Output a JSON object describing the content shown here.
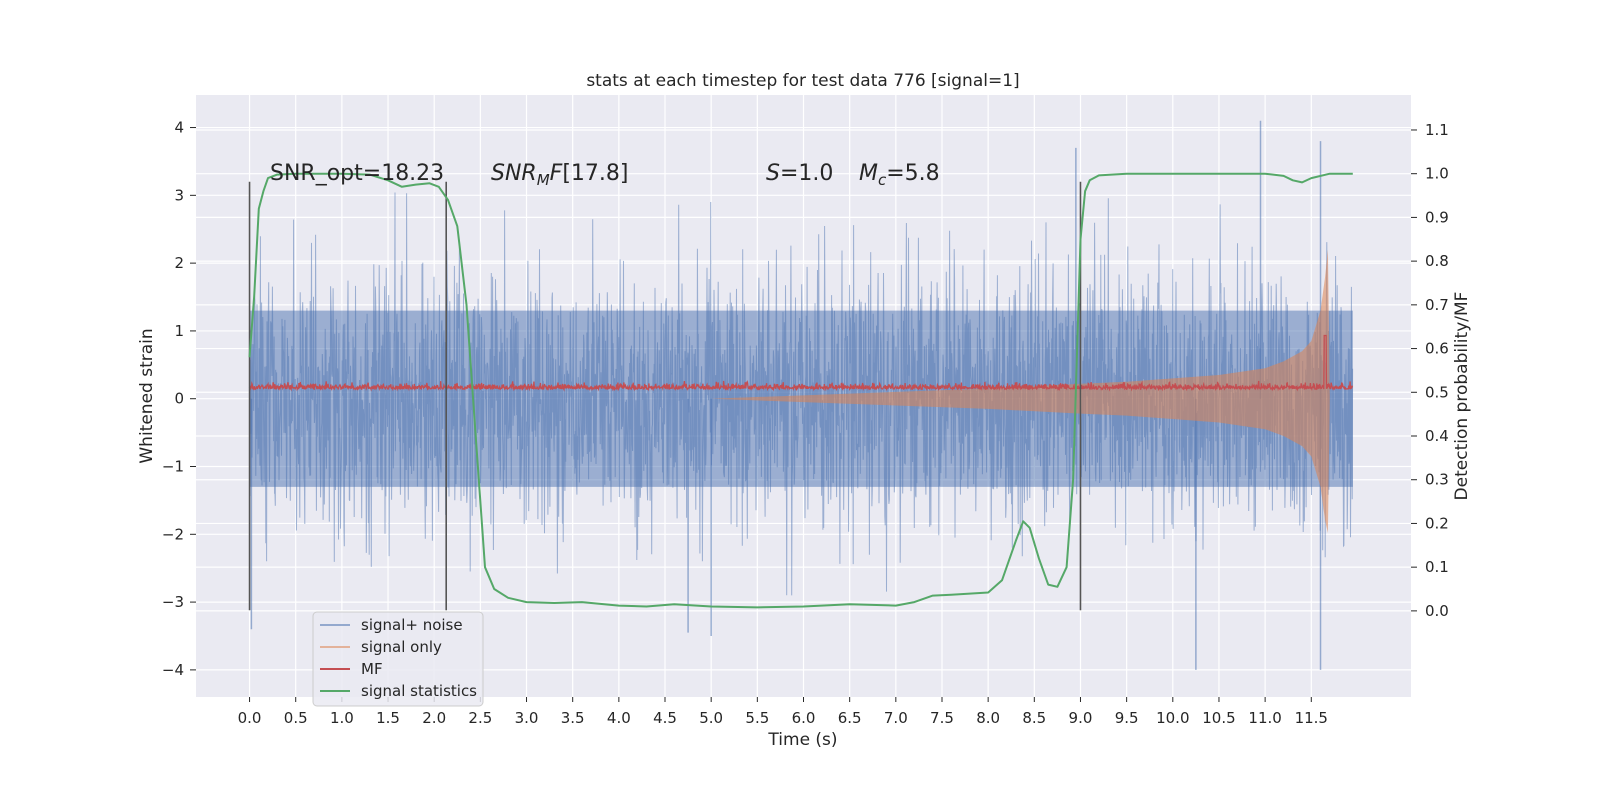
{
  "chart_data": {
    "type": "line",
    "title": "stats at each timestep for test data 776 [signal=1]",
    "xlabel": "Time (s)",
    "ylabel": "Whitened strain",
    "y2label": "Detection probability/MF",
    "xlim": [
      -0.58,
      12.58
    ],
    "ylim": [
      -4.4,
      4.48
    ],
    "y2lim": [
      -0.197,
      1.18
    ],
    "x_ticks": [
      "0.0",
      "0.5",
      "1.0",
      "1.5",
      "2.0",
      "2.5",
      "3.0",
      "3.5",
      "4.0",
      "4.5",
      "5.0",
      "5.5",
      "6.0",
      "6.5",
      "7.0",
      "7.5",
      "8.0",
      "8.5",
      "9.0",
      "9.5",
      "10.0",
      "10.5",
      "11.0",
      "11.5"
    ],
    "y_ticks": [
      "4",
      "3",
      "2",
      "1",
      "0",
      "−1",
      "−2",
      "−3",
      "−4"
    ],
    "y2_ticks": [
      "1.1",
      "1.0",
      "0.9",
      "0.8",
      "0.7",
      "0.6",
      "0.5",
      "0.4",
      "0.3",
      "0.2",
      "0.1",
      "0.0"
    ],
    "grid": true,
    "legend_position": "lower-left",
    "annotations": {
      "snr_opt": "SNR_opt=18.23",
      "snr_mf": "[17.8]",
      "s_val": "=1.0",
      "mc_val": "=5.8"
    },
    "vlines_x": [
      0.0,
      2.13,
      9.0
    ],
    "vline_range": [
      -3.12,
      3.2
    ],
    "series": [
      {
        "name": "signal+ noise",
        "color": "#4c72b0",
        "axis": "left",
        "x_range": [
          0.0,
          11.95
        ],
        "envelope": {
          "x": [
            0,
            1,
            2,
            3,
            4,
            5,
            6,
            7,
            8,
            9,
            10,
            11,
            11.95
          ],
          "upper": [
            3.0,
            3.1,
            3.0,
            3.0,
            3.1,
            2.9,
            3.0,
            3.0,
            3.0,
            3.2,
            3.1,
            3.3,
            2.6
          ],
          "lower": [
            -3.0,
            -2.9,
            -3.0,
            -3.1,
            -3.0,
            -3.1,
            -3.0,
            -3.0,
            -3.0,
            -3.1,
            -3.3,
            -3.6,
            -2.0
          ]
        },
        "peaks": [
          [
            0.02,
            -3.4
          ],
          [
            4.75,
            -3.45
          ],
          [
            5.0,
            -3.5
          ],
          [
            8.95,
            3.7
          ],
          [
            10.25,
            -4.0
          ],
          [
            10.95,
            4.1
          ],
          [
            11.6,
            3.8
          ],
          [
            11.6,
            -4.0
          ]
        ]
      },
      {
        "name": "signal only",
        "color": "#dd8452",
        "axis": "left",
        "x": [
          5.0,
          6.0,
          7.0,
          8.0,
          9.0,
          9.5,
          10.0,
          10.5,
          11.0,
          11.2,
          11.4,
          11.5,
          11.6,
          11.65,
          11.68,
          11.7
        ],
        "amplitude": [
          0.0,
          0.05,
          0.1,
          0.15,
          0.22,
          0.25,
          0.3,
          0.35,
          0.45,
          0.55,
          0.7,
          0.85,
          1.3,
          1.8,
          2.2,
          0.05
        ]
      },
      {
        "name": "MF",
        "color": "#c44e52",
        "axis": "right",
        "x_range": [
          0.0,
          11.95
        ],
        "baseline": 0.51,
        "spike": [
          11.65,
          0.63
        ]
      },
      {
        "name": "signal statistics",
        "color": "#55a868",
        "axis": "right",
        "x": [
          0.0,
          0.05,
          0.1,
          0.15,
          0.2,
          0.3,
          0.5,
          1.0,
          1.3,
          1.5,
          1.65,
          1.8,
          1.95,
          2.05,
          2.15,
          2.25,
          2.35,
          2.45,
          2.55,
          2.65,
          2.8,
          3.0,
          3.3,
          3.6,
          4.0,
          4.3,
          4.6,
          5.0,
          5.5,
          6.0,
          6.5,
          7.0,
          7.2,
          7.4,
          7.6,
          8.0,
          8.15,
          8.3,
          8.38,
          8.45,
          8.55,
          8.65,
          8.75,
          8.85,
          8.92,
          9.0,
          9.05,
          9.1,
          9.2,
          9.5,
          10.0,
          10.5,
          11.0,
          11.2,
          11.3,
          11.4,
          11.5,
          11.7,
          11.95
        ],
        "y": [
          0.58,
          0.72,
          0.92,
          0.96,
          0.99,
          0.998,
          1.0,
          1.0,
          0.998,
          0.985,
          0.97,
          0.975,
          0.978,
          0.97,
          0.94,
          0.88,
          0.7,
          0.4,
          0.1,
          0.05,
          0.03,
          0.02,
          0.018,
          0.02,
          0.012,
          0.01,
          0.015,
          0.01,
          0.008,
          0.01,
          0.015,
          0.012,
          0.02,
          0.035,
          0.037,
          0.042,
          0.07,
          0.16,
          0.205,
          0.19,
          0.12,
          0.06,
          0.055,
          0.1,
          0.3,
          0.85,
          0.96,
          0.985,
          0.996,
          1.0,
          1.0,
          1.0,
          1.0,
          0.995,
          0.985,
          0.98,
          0.99,
          1.0,
          1.0
        ]
      }
    ]
  }
}
